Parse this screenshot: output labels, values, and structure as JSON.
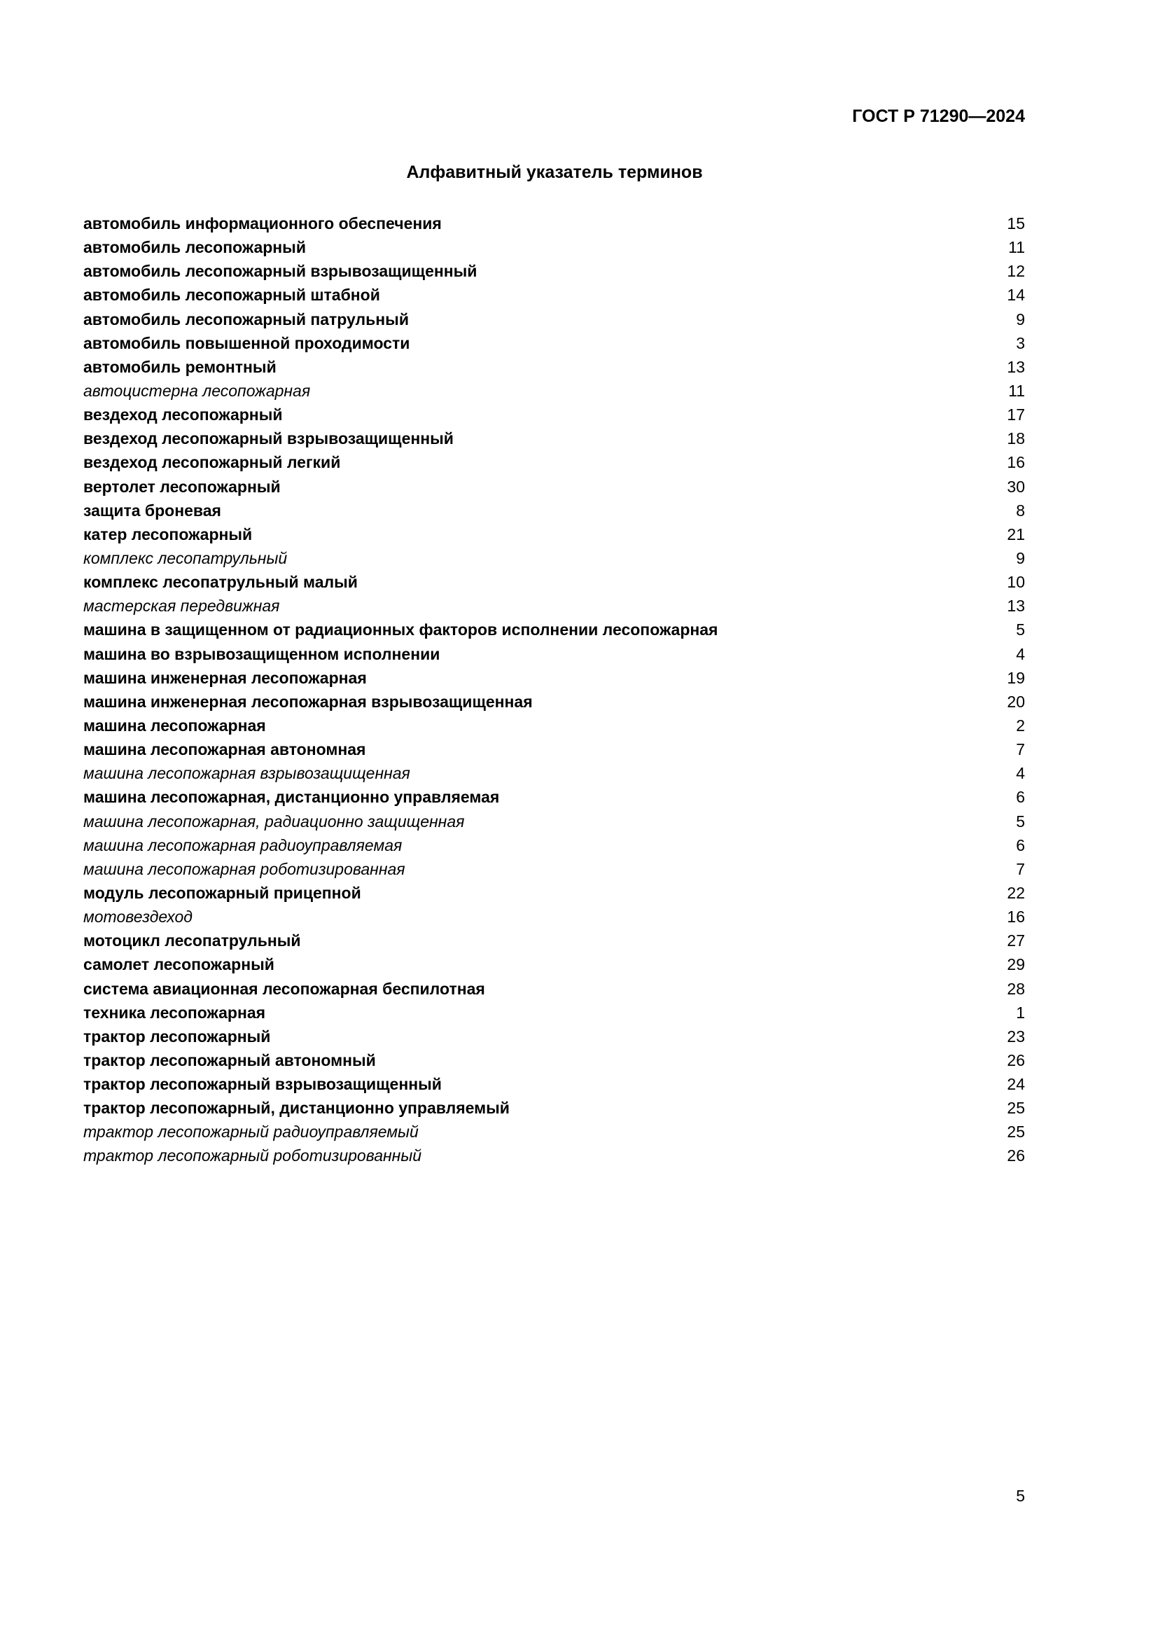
{
  "header": {
    "doc_code": "ГОСТ Р 71290—2024"
  },
  "title": "Алфавитный указатель терминов",
  "entries": [
    {
      "term": "автомобиль информационного обеспечения",
      "page": "15",
      "style": "bold"
    },
    {
      "term": "автомобиль лесопожарный",
      "page": "11",
      "style": "bold"
    },
    {
      "term": "автомобиль лесопожарный взрывозащищенный",
      "page": "12",
      "style": "bold"
    },
    {
      "term": "автомобиль лесопожарный штабной",
      "page": "14",
      "style": "bold"
    },
    {
      "term": "автомобиль лесопожарный патрульный",
      "page": "9",
      "style": "bold"
    },
    {
      "term": "автомобиль повышенной проходимости",
      "page": "3",
      "style": "bold"
    },
    {
      "term": "автомобиль ремонтный",
      "page": "13",
      "style": "bold"
    },
    {
      "term": "автоцистерна лесопожарная",
      "page": "11",
      "style": "italic"
    },
    {
      "term": "вездеход лесопожарный",
      "page": "17",
      "style": "bold"
    },
    {
      "term": "вездеход лесопожарный взрывозащищенный",
      "page": "18",
      "style": "bold"
    },
    {
      "term": "вездеход лесопожарный легкий",
      "page": "16",
      "style": "bold"
    },
    {
      "term": "вертолет лесопожарный",
      "page": "30",
      "style": "bold"
    },
    {
      "term": "защита броневая",
      "page": "8",
      "style": "bold"
    },
    {
      "term": "катер лесопожарный",
      "page": "21",
      "style": "bold"
    },
    {
      "term": "комплекс лесопатрульный",
      "page": "9",
      "style": "italic"
    },
    {
      "term": "комплекс лесопатрульный малый",
      "page": "10",
      "style": "bold"
    },
    {
      "term": "мастерская передвижная",
      "page": "13",
      "style": "italic"
    },
    {
      "term": "машина в защищенном от радиационных факторов исполнении лесопожарная",
      "page": "5",
      "style": "bold"
    },
    {
      "term": "машина во взрывозащищенном исполнении",
      "page": "4",
      "style": "bold"
    },
    {
      "term": "машина инженерная лесопожарная",
      "page": "19",
      "style": "bold"
    },
    {
      "term": "машина инженерная лесопожарная взрывозащищенная",
      "page": "20",
      "style": "bold"
    },
    {
      "term": "машина лесопожарная",
      "page": "2",
      "style": "bold"
    },
    {
      "term": "машина лесопожарная автономная",
      "page": "7",
      "style": "bold"
    },
    {
      "term": "машина лесопожарная взрывозащищенная",
      "page": "4",
      "style": "italic"
    },
    {
      "term": "машина лесопожарная, дистанционно управляемая",
      "page": "6",
      "style": "bold"
    },
    {
      "term": "машина лесопожарная, радиационно защищенная",
      "page": "5",
      "style": "italic"
    },
    {
      "term": "машина лесопожарная радиоуправляемая",
      "page": "6",
      "style": "italic"
    },
    {
      "term": "машина лесопожарная роботизированная",
      "page": "7",
      "style": "italic"
    },
    {
      "term": "модуль лесопожарный прицепной",
      "page": "22",
      "style": "bold"
    },
    {
      "term": "мотовездеход",
      "page": "16",
      "style": "italic"
    },
    {
      "term": "мотоцикл лесопатрульный",
      "page": "27",
      "style": "bold"
    },
    {
      "term": "самолет лесопожарный",
      "page": "29",
      "style": "bold"
    },
    {
      "term": "система авиационная лесопожарная беспилотная",
      "page": "28",
      "style": "bold"
    },
    {
      "term": "техника лесопожарная",
      "page": "1",
      "style": "bold"
    },
    {
      "term": "трактор лесопожарный",
      "page": "23",
      "style": "bold"
    },
    {
      "term": "трактор лесопожарный автономный",
      "page": "26",
      "style": "bold"
    },
    {
      "term": "трактор лесопожарный взрывозащищенный",
      "page": "24",
      "style": "bold"
    },
    {
      "term": "трактор лесопожарный, дистанционно управляемый",
      "page": "25",
      "style": "bold"
    },
    {
      "term": "трактор лесопожарный радиоуправляемый",
      "page": "25",
      "style": "italic"
    },
    {
      "term": "трактор лесопожарный роботизированный",
      "page": "26",
      "style": "italic"
    }
  ],
  "footer": {
    "page_number": "5"
  }
}
